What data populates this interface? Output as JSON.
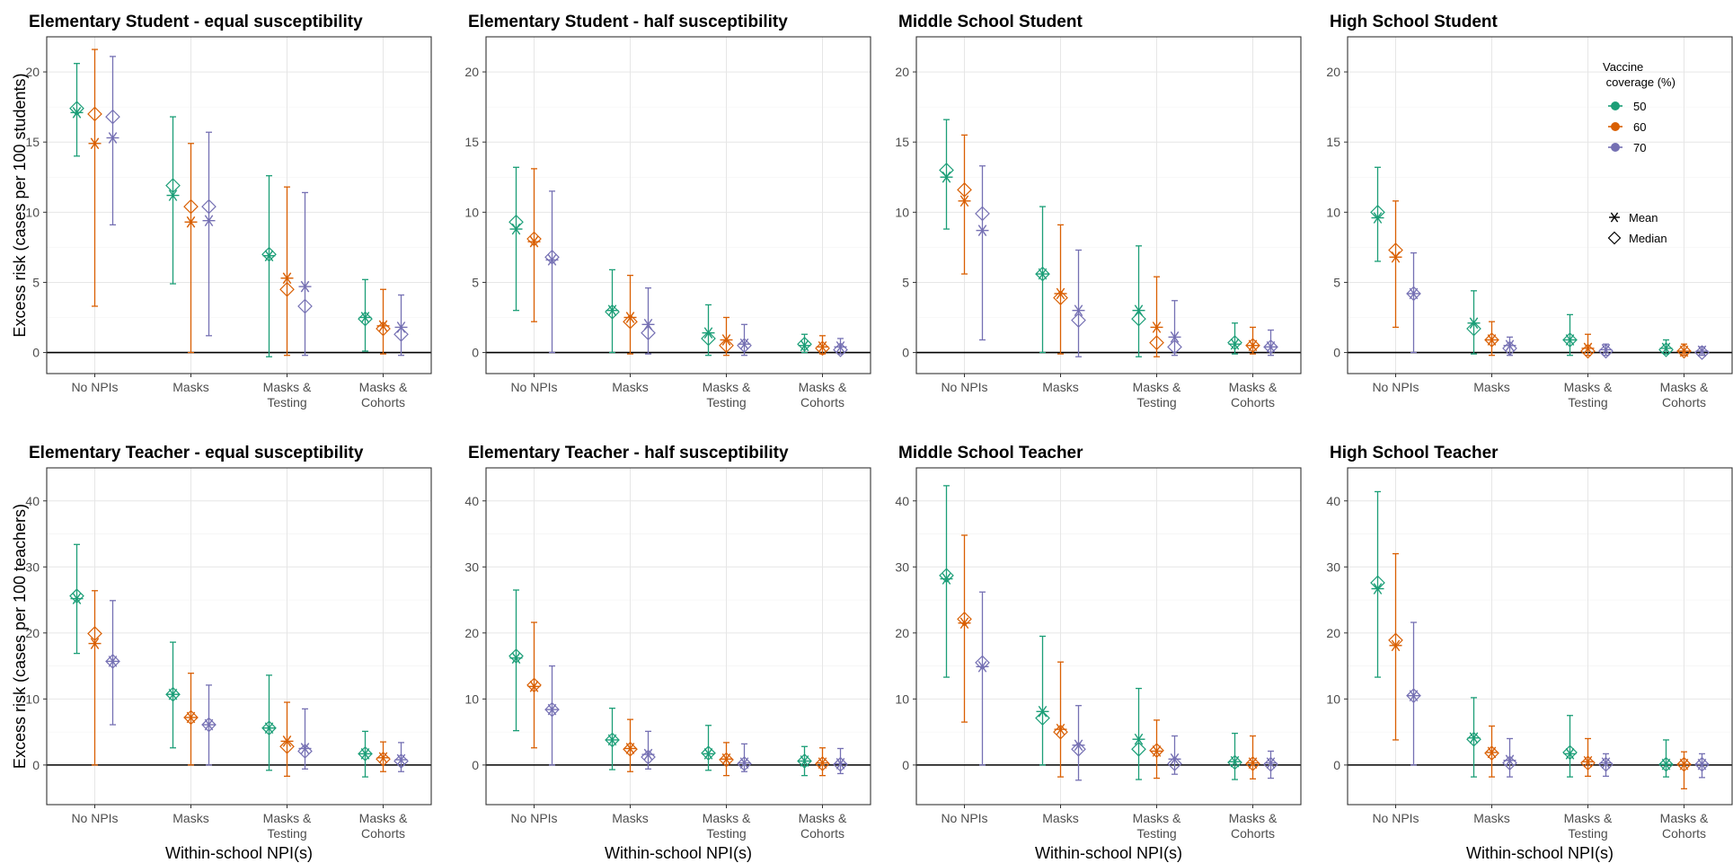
{
  "chart_data": {
    "type": "errorbar",
    "x_title": "Within-school NPI(s)",
    "categories": [
      "No NPIs",
      "Masks",
      "Masks &\nTesting",
      "Masks &\nCohorts"
    ],
    "series_colors": {
      "50": "#1b9e77",
      "60": "#d95f02",
      "70": "#7570b3"
    },
    "legend": {
      "title": "Vaccine\n coverage (%)",
      "coverage": [
        "50",
        "60",
        "70"
      ],
      "stats": [
        {
          "symbol": "asterisk",
          "label": "Mean"
        },
        {
          "symbol": "diamond",
          "label": "Median"
        }
      ],
      "placement": "top-right of High School Student panel"
    },
    "rows": [
      {
        "y_title": "Excess risk (cases per 100 students)",
        "ylim": [
          -1.5,
          22.5
        ],
        "yticks": [
          0,
          5,
          10,
          15,
          20
        ],
        "panels": [
          {
            "title": "Elementary Student - equal susceptibility",
            "series": [
              {
                "coverage": "50",
                "mean": [
                  17.1,
                  11.2,
                  6.9,
                  2.5
                ],
                "median": [
                  17.4,
                  11.9,
                  7.0,
                  2.4
                ],
                "lo": [
                  14.0,
                  4.9,
                  -0.3,
                  0.1
                ],
                "hi": [
                  20.6,
                  16.8,
                  12.6,
                  5.2
                ]
              },
              {
                "coverage": "60",
                "mean": [
                  14.9,
                  9.3,
                  5.3,
                  1.9
                ],
                "median": [
                  17.0,
                  10.4,
                  4.5,
                  1.7
                ],
                "lo": [
                  3.3,
                  0.0,
                  -0.2,
                  -0.1
                ],
                "hi": [
                  21.6,
                  14.9,
                  11.8,
                  4.5
                ]
              },
              {
                "coverage": "70",
                "mean": [
                  15.3,
                  9.4,
                  4.7,
                  1.8
                ],
                "median": [
                  16.8,
                  10.4,
                  3.3,
                  1.3
                ],
                "lo": [
                  9.1,
                  1.2,
                  -0.2,
                  -0.2
                ],
                "hi": [
                  21.1,
                  15.7,
                  11.4,
                  4.1
                ]
              }
            ]
          },
          {
            "title": "Elementary Student - half susceptibility",
            "series": [
              {
                "coverage": "50",
                "mean": [
                  8.8,
                  3.0,
                  1.4,
                  0.5
                ],
                "median": [
                  9.3,
                  2.9,
                  1.0,
                  0.6
                ],
                "lo": [
                  3.0,
                  0.0,
                  -0.2,
                  0.0
                ],
                "hi": [
                  13.2,
                  5.9,
                  3.4,
                  1.3
                ]
              },
              {
                "coverage": "60",
                "mean": [
                  7.9,
                  2.5,
                  0.9,
                  0.4
                ],
                "median": [
                  8.1,
                  2.2,
                  0.5,
                  0.3
                ],
                "lo": [
                  2.2,
                  -0.1,
                  -0.2,
                  -0.1
                ],
                "hi": [
                  13.1,
                  5.5,
                  2.5,
                  1.2
                ]
              },
              {
                "coverage": "70",
                "mean": [
                  6.6,
                  2.0,
                  0.6,
                  0.4
                ],
                "median": [
                  6.8,
                  1.4,
                  0.5,
                  0.2
                ],
                "lo": [
                  0.0,
                  -0.1,
                  -0.2,
                  -0.1
                ],
                "hi": [
                  11.5,
                  4.6,
                  2.0,
                  1.0
                ]
              }
            ]
          },
          {
            "title": "Middle School Student",
            "series": [
              {
                "coverage": "50",
                "mean": [
                  12.5,
                  5.6,
                  3.0,
                  0.6
                ],
                "median": [
                  13.0,
                  5.6,
                  2.4,
                  0.7
                ],
                "lo": [
                  8.8,
                  0.0,
                  -0.3,
                  -0.1
                ],
                "hi": [
                  16.6,
                  10.4,
                  7.6,
                  2.1
                ]
              },
              {
                "coverage": "60",
                "mean": [
                  10.8,
                  4.2,
                  1.8,
                  0.5
                ],
                "median": [
                  11.6,
                  3.9,
                  0.7,
                  0.5
                ],
                "lo": [
                  5.6,
                  -0.1,
                  -0.3,
                  -0.1
                ],
                "hi": [
                  15.5,
                  9.1,
                  5.4,
                  1.8
                ]
              },
              {
                "coverage": "70",
                "mean": [
                  8.7,
                  3.0,
                  1.1,
                  0.4
                ],
                "median": [
                  9.9,
                  2.3,
                  0.4,
                  0.4
                ],
                "lo": [
                  0.9,
                  -0.3,
                  -0.2,
                  -0.2
                ],
                "hi": [
                  13.3,
                  7.3,
                  3.7,
                  1.6
                ]
              }
            ]
          },
          {
            "title": "High School Student",
            "series": [
              {
                "coverage": "50",
                "mean": [
                  9.6,
                  2.1,
                  0.9,
                  0.3
                ],
                "median": [
                  10.0,
                  1.7,
                  0.9,
                  0.2
                ],
                "lo": [
                  6.5,
                  -0.1,
                  -0.2,
                  -0.1
                ],
                "hi": [
                  13.2,
                  4.4,
                  2.7,
                  0.9
                ]
              },
              {
                "coverage": "60",
                "mean": [
                  6.8,
                  0.9,
                  0.3,
                  0.1
                ],
                "median": [
                  7.3,
                  0.9,
                  0.1,
                  0.1
                ],
                "lo": [
                  1.8,
                  -0.2,
                  -0.2,
                  -0.2
                ],
                "hi": [
                  10.8,
                  2.2,
                  1.3,
                  0.6
                ]
              },
              {
                "coverage": "70",
                "mean": [
                  4.2,
                  0.5,
                  0.2,
                  0.1
                ],
                "median": [
                  4.2,
                  0.3,
                  0.1,
                  0.0
                ],
                "lo": [
                  0.0,
                  -0.2,
                  -0.2,
                  -0.2
                ],
                "hi": [
                  7.1,
                  1.1,
                  0.6,
                  0.4
                ]
              }
            ]
          }
        ]
      },
      {
        "y_title": "Excess risk (cases per 100 teachers)",
        "ylim": [
          -6,
          45
        ],
        "yticks": [
          0,
          10,
          20,
          30,
          40
        ],
        "panels": [
          {
            "title": "Elementary Teacher - equal susceptibility",
            "series": [
              {
                "coverage": "50",
                "mean": [
                  25.2,
                  10.7,
                  5.6,
                  1.7
                ],
                "median": [
                  25.6,
                  10.7,
                  5.6,
                  1.7
                ],
                "lo": [
                  16.9,
                  2.6,
                  -0.8,
                  -1.8
                ],
                "hi": [
                  33.4,
                  18.6,
                  13.6,
                  5.1
                ]
              },
              {
                "coverage": "60",
                "mean": [
                  18.4,
                  7.2,
                  3.6,
                  1.1
                ],
                "median": [
                  19.9,
                  7.2,
                  2.8,
                  0.9
                ],
                "lo": [
                  0.0,
                  0.0,
                  -1.7,
                  -1.0
                ],
                "hi": [
                  26.4,
                  13.9,
                  9.5,
                  3.5
                ]
              },
              {
                "coverage": "70",
                "mean": [
                  15.7,
                  6.1,
                  2.5,
                  0.8
                ],
                "median": [
                  15.7,
                  6.1,
                  2.1,
                  0.6
                ],
                "lo": [
                  6.1,
                  0.0,
                  -0.6,
                  -1.0
                ],
                "hi": [
                  24.9,
                  12.1,
                  8.5,
                  3.4
                ]
              }
            ]
          },
          {
            "title": "Elementary Teacher - half susceptibility",
            "series": [
              {
                "coverage": "50",
                "mean": [
                  16.2,
                  3.8,
                  1.7,
                  0.6
                ],
                "median": [
                  16.5,
                  3.8,
                  1.8,
                  0.6
                ],
                "lo": [
                  5.2,
                  -0.7,
                  -0.8,
                  -1.6
                ],
                "hi": [
                  26.5,
                  8.6,
                  6.0,
                  2.8
                ]
              },
              {
                "coverage": "60",
                "mean": [
                  11.9,
                  2.5,
                  0.9,
                  0.3
                ],
                "median": [
                  12.1,
                  2.4,
                  0.8,
                  0.2
                ],
                "lo": [
                  2.6,
                  -1.0,
                  -1.6,
                  -1.6
                ],
                "hi": [
                  21.6,
                  6.9,
                  3.4,
                  2.6
                ]
              },
              {
                "coverage": "70",
                "mean": [
                  8.4,
                  1.6,
                  0.3,
                  0.2
                ],
                "median": [
                  8.4,
                  1.2,
                  0.2,
                  0.1
                ],
                "lo": [
                  0.0,
                  -0.6,
                  -1.0,
                  -1.3
                ],
                "hi": [
                  15.0,
                  5.1,
                  3.2,
                  2.5
                ]
              }
            ]
          },
          {
            "title": "Middle School Teacher",
            "series": [
              {
                "coverage": "50",
                "mean": [
                  28.2,
                  8.1,
                  3.9,
                  0.5
                ],
                "median": [
                  28.7,
                  7.1,
                  2.4,
                  0.4
                ],
                "lo": [
                  13.3,
                  0.0,
                  -2.2,
                  -2.2
                ],
                "hi": [
                  42.3,
                  19.5,
                  11.6,
                  4.8
                ]
              },
              {
                "coverage": "60",
                "mean": [
                  21.5,
                  5.4,
                  2.1,
                  0.3
                ],
                "median": [
                  22.1,
                  5.0,
                  2.2,
                  0.2
                ],
                "lo": [
                  6.5,
                  -1.8,
                  -2.0,
                  -2.1
                ],
                "hi": [
                  34.8,
                  15.6,
                  6.8,
                  4.4
                ]
              },
              {
                "coverage": "70",
                "mean": [
                  14.9,
                  3.0,
                  0.9,
                  0.3
                ],
                "median": [
                  15.5,
                  2.4,
                  0.2,
                  0.1
                ],
                "lo": [
                  0.0,
                  -2.3,
                  -1.4,
                  -2.0
                ],
                "hi": [
                  26.2,
                  9.0,
                  4.4,
                  2.1
                ]
              }
            ]
          },
          {
            "title": "High School Teacher",
            "series": [
              {
                "coverage": "50",
                "mean": [
                  26.7,
                  4.1,
                  1.7,
                  0.1
                ],
                "median": [
                  27.6,
                  3.9,
                  1.9,
                  0.1
                ],
                "lo": [
                  13.3,
                  -1.8,
                  -1.8,
                  -1.8
                ],
                "hi": [
                  41.4,
                  10.2,
                  7.5,
                  3.8
                ]
              },
              {
                "coverage": "60",
                "mean": [
                  18.1,
                  1.9,
                  0.5,
                  0.1
                ],
                "median": [
                  18.9,
                  1.8,
                  0.3,
                  0.1
                ],
                "lo": [
                  3.8,
                  -1.8,
                  -1.7,
                  -3.6
                ],
                "hi": [
                  32.0,
                  5.9,
                  4.0,
                  2.0
                ]
              },
              {
                "coverage": "70",
                "mean": [
                  10.5,
                  0.7,
                  0.3,
                  0.1
                ],
                "median": [
                  10.5,
                  0.3,
                  0.1,
                  0.1
                ],
                "lo": [
                  0.0,
                  -1.8,
                  -1.7,
                  -1.9
                ],
                "hi": [
                  21.6,
                  4.0,
                  1.7,
                  1.7
                ]
              }
            ]
          }
        ]
      }
    ]
  }
}
